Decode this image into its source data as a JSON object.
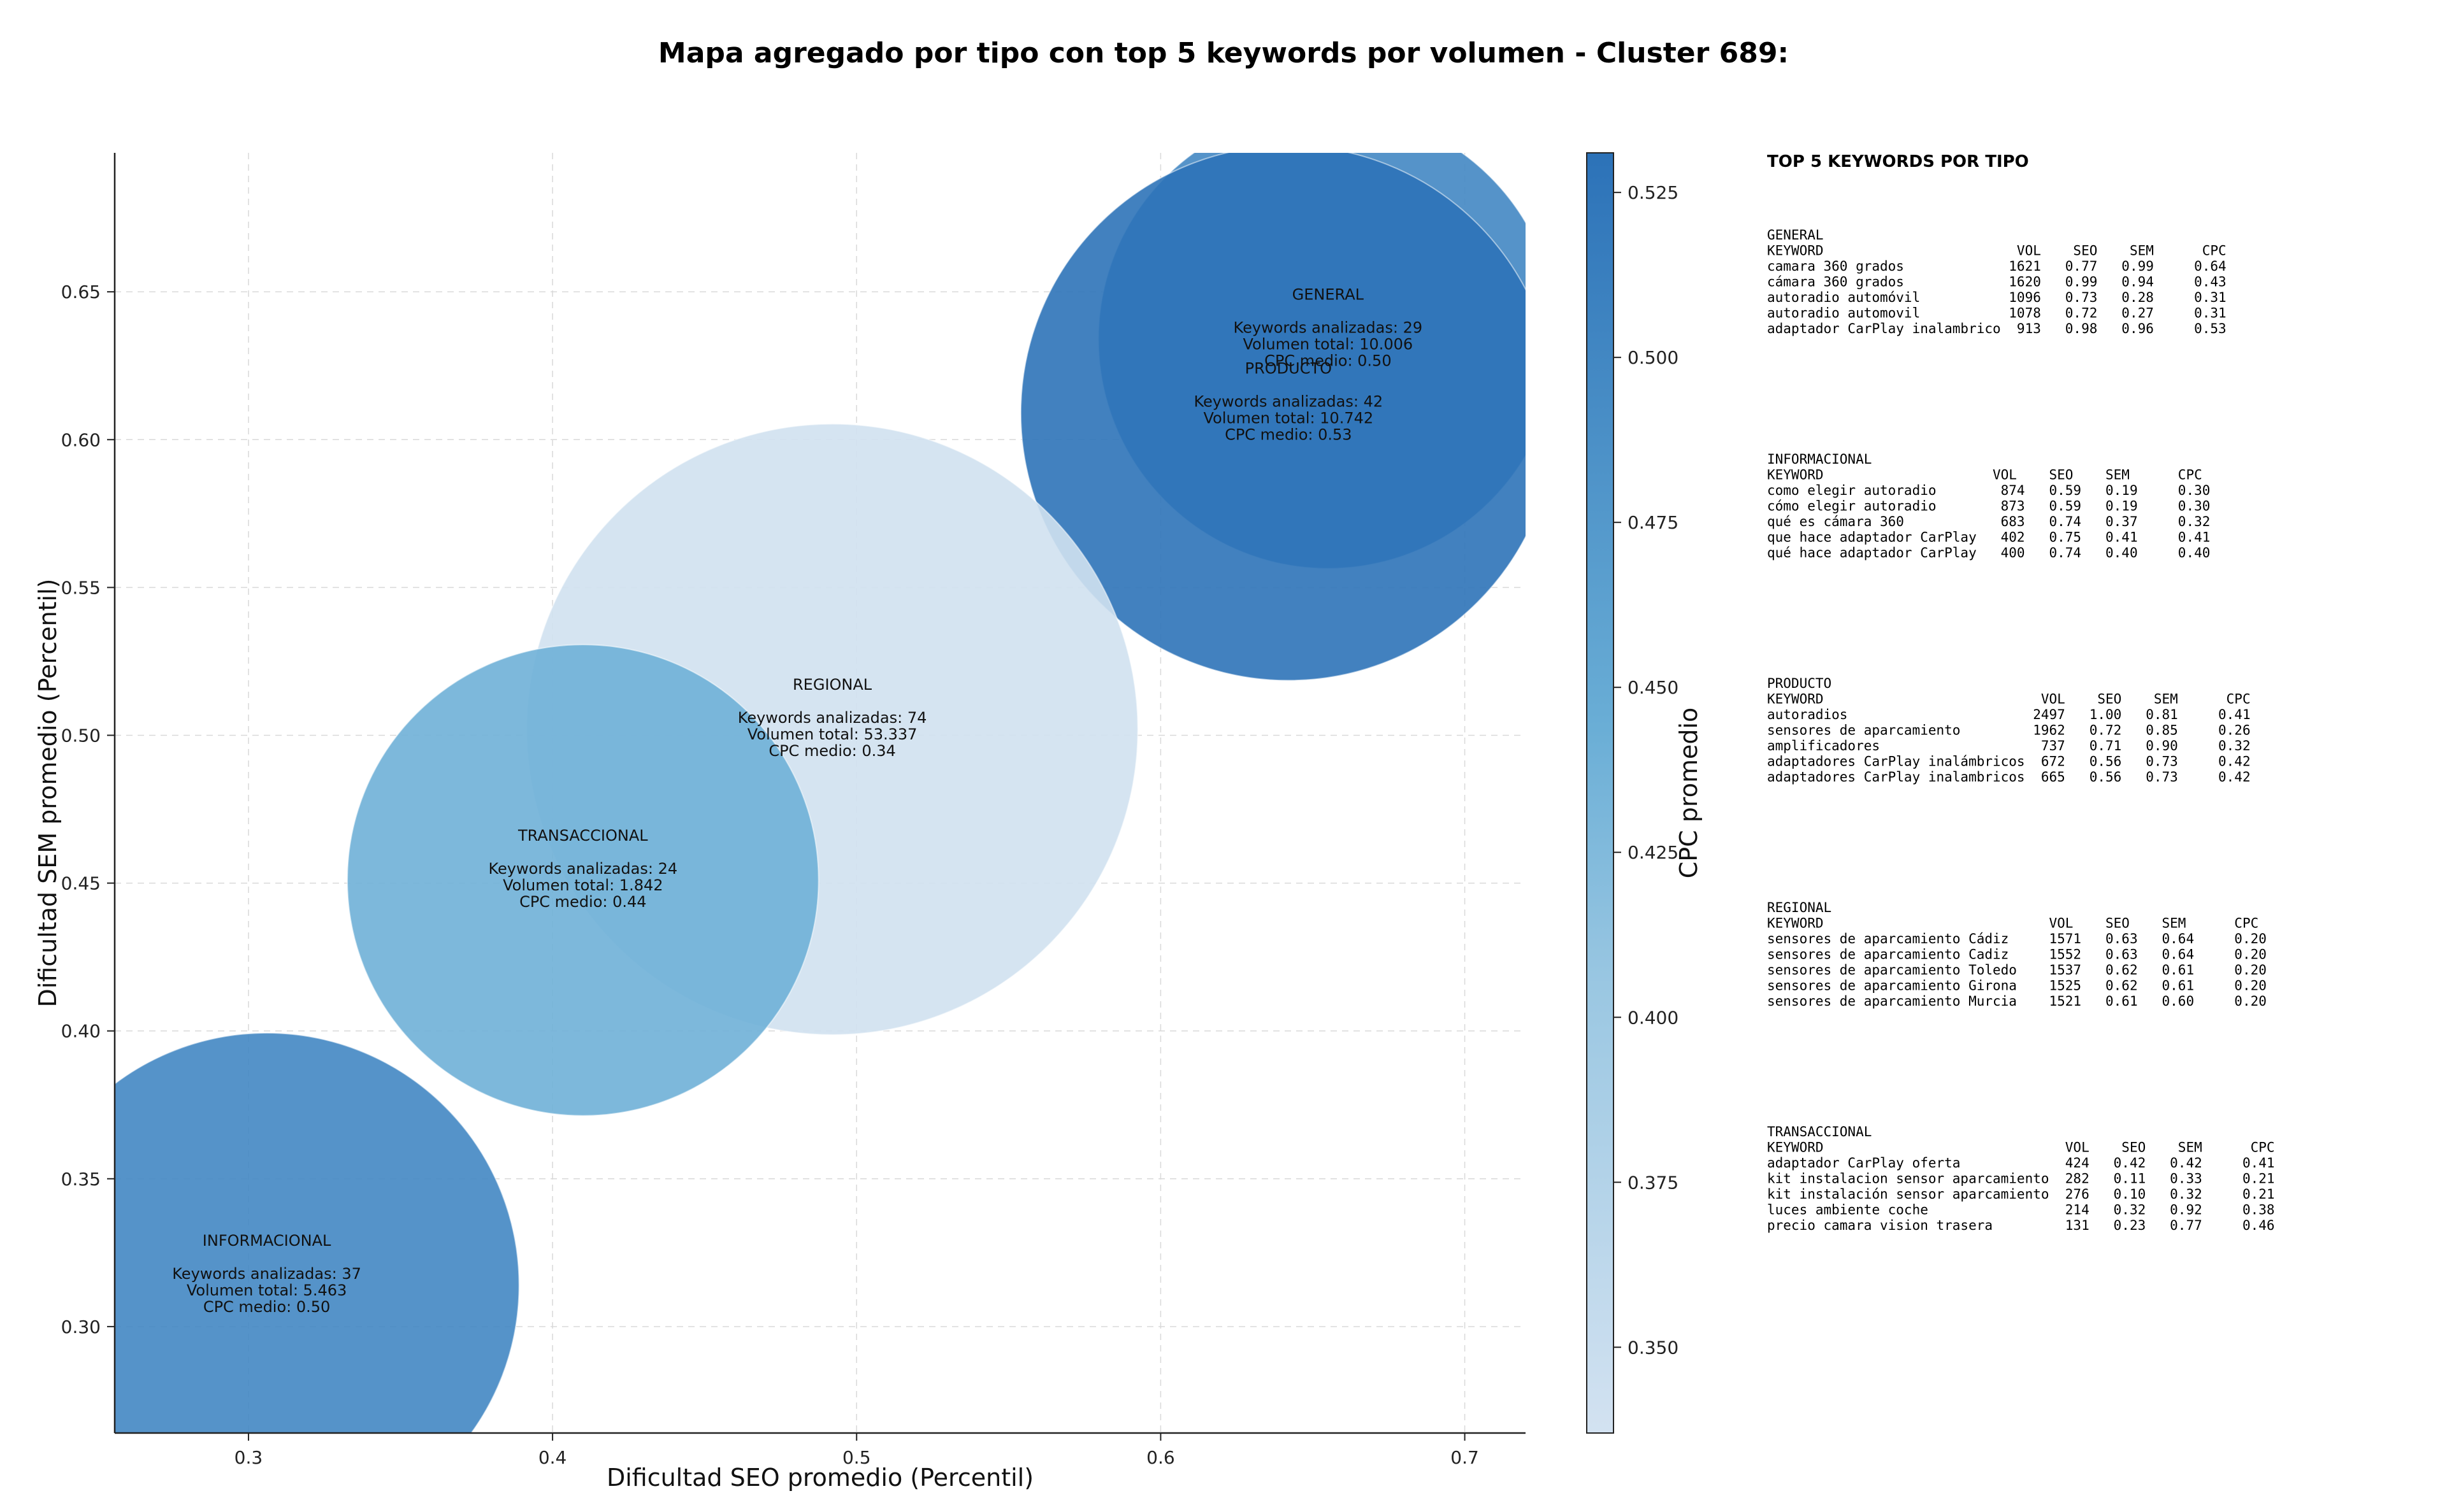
{
  "chart_data": {
    "type": "scatter",
    "title": "Mapa agregado por tipo con top 5 keywords por volumen - Cluster 689:",
    "xlabel": "Dificultad SEO promedio (Percentil)",
    "ylabel": "Dificultad SEM promedio (Percentil)",
    "colorbar_label": "CPC promedio",
    "xlim": [
      0.256,
      0.72
    ],
    "ylim": [
      0.264,
      0.697
    ],
    "xticks": [
      "0.3",
      "0.4",
      "0.5",
      "0.6",
      "0.7"
    ],
    "yticks": [
      "0.30",
      "0.35",
      "0.40",
      "0.45",
      "0.50",
      "0.55",
      "0.60",
      "0.65"
    ],
    "colorbar_range": [
      0.337,
      0.531
    ],
    "colorbar_ticks": [
      "0.350",
      "0.375",
      "0.400",
      "0.425",
      "0.450",
      "0.475",
      "0.500",
      "0.525"
    ],
    "colors": {
      "low": "#d3e2f1",
      "mid": "#6aaed6",
      "high": "#2c72b8"
    },
    "grid": true,
    "bubbles": [
      {
        "type": "GENERAL",
        "x": 0.655,
        "y": 0.634,
        "r_axis": 0.0755,
        "cpc": 0.5,
        "keywords_label": "Keywords analizadas: 29",
        "volume_label": "Volumen total: 10.006",
        "cpc_label": "CPC medio: 0.50"
      },
      {
        "type": "PRODUCTO",
        "x": 0.642,
        "y": 0.609,
        "r_axis": 0.088,
        "cpc": 0.53,
        "keywords_label": "Keywords analizadas: 42",
        "volume_label": "Volumen total: 10.742",
        "cpc_label": "CPC medio: 0.53"
      },
      {
        "type": "REGIONAL",
        "x": 0.492,
        "y": 0.502,
        "r_axis": 0.1005,
        "cpc": 0.34,
        "keywords_label": "Keywords analizadas: 74",
        "volume_label": "Volumen total: 53.337",
        "cpc_label": "CPC medio: 0.34"
      },
      {
        "type": "TRANSACCIONAL",
        "x": 0.41,
        "y": 0.451,
        "r_axis": 0.0775,
        "cpc": 0.44,
        "keywords_label": "Keywords analizadas: 24",
        "volume_label": "Volumen total: 1.842",
        "cpc_label": "CPC medio: 0.44"
      },
      {
        "type": "INFORMACIONAL",
        "x": 0.306,
        "y": 0.314,
        "r_axis": 0.083,
        "cpc": 0.5,
        "keywords_label": "Keywords analizadas: 37",
        "volume_label": "Volumen total: 5.463",
        "cpc_label": "CPC medio: 0.50"
      }
    ]
  },
  "side_panel": {
    "heading": "TOP 5 KEYWORDS POR TIPO",
    "groups": [
      {
        "name": "GENERAL",
        "header": "KEYWORD                        VOL    SEO    SEM      CPC",
        "rows": [
          "camara 360 grados             1621   0.77   0.99     0.64",
          "cámara 360 grados             1620   0.99   0.94     0.43",
          "autoradio automóvil           1096   0.73   0.28     0.31",
          "autoradio automovil           1078   0.72   0.27     0.31",
          "adaptador CarPlay inalambrico  913   0.98   0.96     0.53"
        ]
      },
      {
        "name": "INFORMACIONAL",
        "header": "KEYWORD                     VOL    SEO    SEM      CPC",
        "rows": [
          "como elegir autoradio        874   0.59   0.19     0.30",
          "cómo elegir autoradio        873   0.59   0.19     0.30",
          "qué es cámara 360            683   0.74   0.37     0.32",
          "que hace adaptador CarPlay   402   0.75   0.41     0.41",
          "qué hace adaptador CarPlay   400   0.74   0.40     0.40"
        ]
      },
      {
        "name": "PRODUCTO",
        "header": "KEYWORD                           VOL    SEO    SEM      CPC",
        "rows": [
          "autoradios                       2497   1.00   0.81     0.41",
          "sensores de aparcamiento         1962   0.72   0.85     0.26",
          "amplificadores                    737   0.71   0.90     0.32",
          "adaptadores CarPlay inalámbricos  672   0.56   0.73     0.42",
          "adaptadores CarPlay inalambricos  665   0.56   0.73     0.42"
        ]
      },
      {
        "name": "REGIONAL",
        "header": "KEYWORD                            VOL    SEO    SEM      CPC",
        "rows": [
          "sensores de aparcamiento Cádiz     1571   0.63   0.64     0.20",
          "sensores de aparcamiento Cadiz     1552   0.63   0.64     0.20",
          "sensores de aparcamiento Toledo    1537   0.62   0.61     0.20",
          "sensores de aparcamiento Girona    1525   0.62   0.61     0.20",
          "sensores de aparcamiento Murcia    1521   0.61   0.60     0.20"
        ]
      },
      {
        "name": "TRANSACCIONAL",
        "header": "KEYWORD                              VOL    SEO    SEM      CPC",
        "rows": [
          "adaptador CarPlay oferta             424   0.42   0.42     0.41",
          "kit instalacion sensor aparcamiento  282   0.11   0.33     0.21",
          "kit instalación sensor aparcamiento  276   0.10   0.32     0.21",
          "luces ambiente coche                 214   0.32   0.92     0.38",
          "precio camara vision trasera         131   0.23   0.77     0.46"
        ]
      }
    ]
  }
}
